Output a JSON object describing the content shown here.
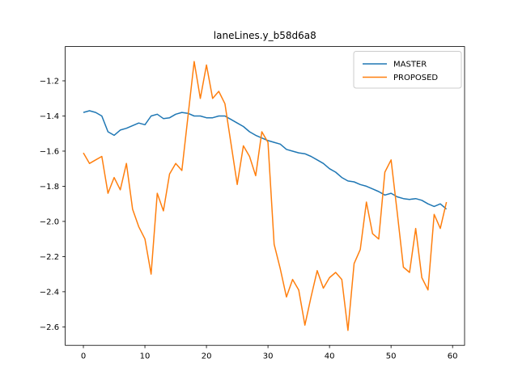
{
  "chart_data": {
    "type": "line",
    "title": "laneLines.y_b58d6a8",
    "xlabel": "",
    "ylabel": "",
    "grid": false,
    "plot_bg": "#ffffff",
    "frame_color": "#000000",
    "xlim": [
      -2.95,
      61.95
    ],
    "ylim": [
      -2.705,
      -1.005
    ],
    "xticks": {
      "values": [
        0,
        10,
        20,
        30,
        40,
        50,
        60
      ],
      "labels": [
        "0",
        "10",
        "20",
        "30",
        "40",
        "50",
        "60"
      ]
    },
    "yticks": {
      "values": [
        -1.2,
        -1.4,
        -1.6,
        -1.8,
        -2.0,
        -2.2,
        -2.4,
        -2.6
      ],
      "labels": [
        "−1.2",
        "−1.4",
        "−1.6",
        "−1.8",
        "−2.0",
        "−2.2",
        "−2.4",
        "−2.6"
      ]
    },
    "legend": {
      "position": "upper right",
      "entries": [
        "MASTER",
        "PROPOSED"
      ],
      "edge_color": "#cccccc"
    },
    "x": [
      0,
      1,
      2,
      3,
      4,
      5,
      6,
      7,
      8,
      9,
      10,
      11,
      12,
      13,
      14,
      15,
      16,
      17,
      18,
      19,
      20,
      21,
      22,
      23,
      24,
      25,
      26,
      27,
      28,
      29,
      30,
      31,
      32,
      33,
      34,
      35,
      36,
      37,
      38,
      39,
      40,
      41,
      42,
      43,
      44,
      45,
      46,
      47,
      48,
      49,
      50,
      51,
      52,
      53,
      54,
      55,
      56,
      57,
      58,
      59
    ],
    "series": [
      {
        "name": "MASTER",
        "color": "#1f77b4",
        "values": [
          -1.38,
          -1.37,
          -1.38,
          -1.4,
          -1.49,
          -1.51,
          -1.48,
          -1.47,
          -1.455,
          -1.44,
          -1.45,
          -1.4,
          -1.39,
          -1.415,
          -1.41,
          -1.39,
          -1.38,
          -1.385,
          -1.4,
          -1.4,
          -1.41,
          -1.41,
          -1.4,
          -1.4,
          -1.42,
          -1.44,
          -1.46,
          -1.49,
          -1.51,
          -1.525,
          -1.54,
          -1.55,
          -1.56,
          -1.59,
          -1.6,
          -1.61,
          -1.615,
          -1.63,
          -1.65,
          -1.67,
          -1.7,
          -1.72,
          -1.75,
          -1.77,
          -1.775,
          -1.79,
          -1.8,
          -1.815,
          -1.83,
          -1.85,
          -1.84,
          -1.86,
          -1.87,
          -1.875,
          -1.87,
          -1.88,
          -1.9,
          -1.915,
          -1.9,
          -1.93
        ]
      },
      {
        "name": "PROPOSED",
        "color": "#ff7f0e",
        "values": [
          -1.61,
          -1.67,
          -1.65,
          -1.63,
          -1.84,
          -1.75,
          -1.82,
          -1.67,
          -1.93,
          -2.03,
          -2.1,
          -2.3,
          -1.84,
          -1.94,
          -1.73,
          -1.67,
          -1.71,
          -1.4,
          -1.09,
          -1.3,
          -1.11,
          -1.3,
          -1.26,
          -1.33,
          -1.56,
          -1.79,
          -1.57,
          -1.63,
          -1.74,
          -1.49,
          -1.55,
          -2.13,
          -2.27,
          -2.43,
          -2.33,
          -2.39,
          -2.59,
          -2.43,
          -2.28,
          -2.38,
          -2.32,
          -2.29,
          -2.33,
          -2.62,
          -2.24,
          -2.16,
          -1.89,
          -2.07,
          -2.1,
          -1.72,
          -1.65,
          -1.95,
          -2.26,
          -2.29,
          -2.04,
          -2.32,
          -2.39,
          -1.96,
          -2.04,
          -1.89
        ]
      }
    ]
  }
}
